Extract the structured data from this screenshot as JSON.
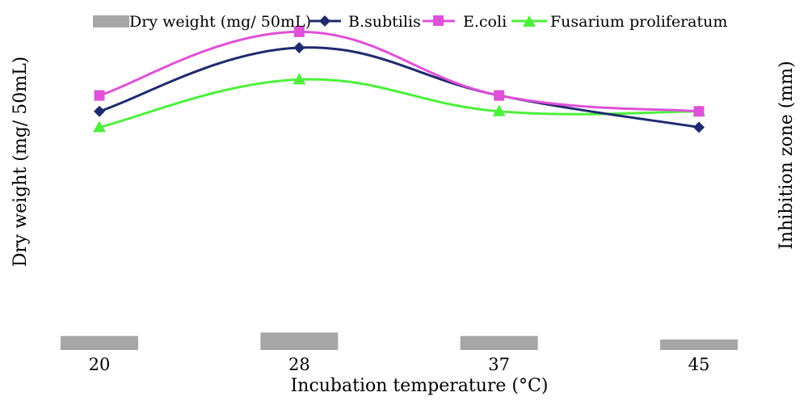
{
  "chart_data": {
    "type": "line",
    "title": "",
    "xlabel": "Incubation temperature (°C)",
    "ylabel": "Dry weight (mg/ 50mL)",
    "y2label": "Inhibition zone (mm)",
    "categories": [
      "20",
      "28",
      "37",
      "45"
    ],
    "bar_series": {
      "name": "Dry weight (mg/ 50mL)",
      "color": "#a6a6a6",
      "values": [
        0.8,
        1.0,
        0.8,
        0.6
      ],
      "ylim": [
        0,
        20
      ]
    },
    "series": [
      {
        "name": "B.subtilis",
        "color": "#1f2a6e",
        "marker": "diamond",
        "values": [
          15,
          19,
          16,
          14
        ]
      },
      {
        "name": "E.coli",
        "color": "#e050d8",
        "marker": "square",
        "values": [
          16,
          20,
          16,
          15
        ]
      },
      {
        "name": "Fusarium proliferatum",
        "color": "#4cf03c",
        "marker": "triangle",
        "values": [
          14,
          17,
          15,
          15
        ]
      }
    ],
    "y2lim": [
      0,
      22
    ],
    "grid": false,
    "legend": "top"
  }
}
